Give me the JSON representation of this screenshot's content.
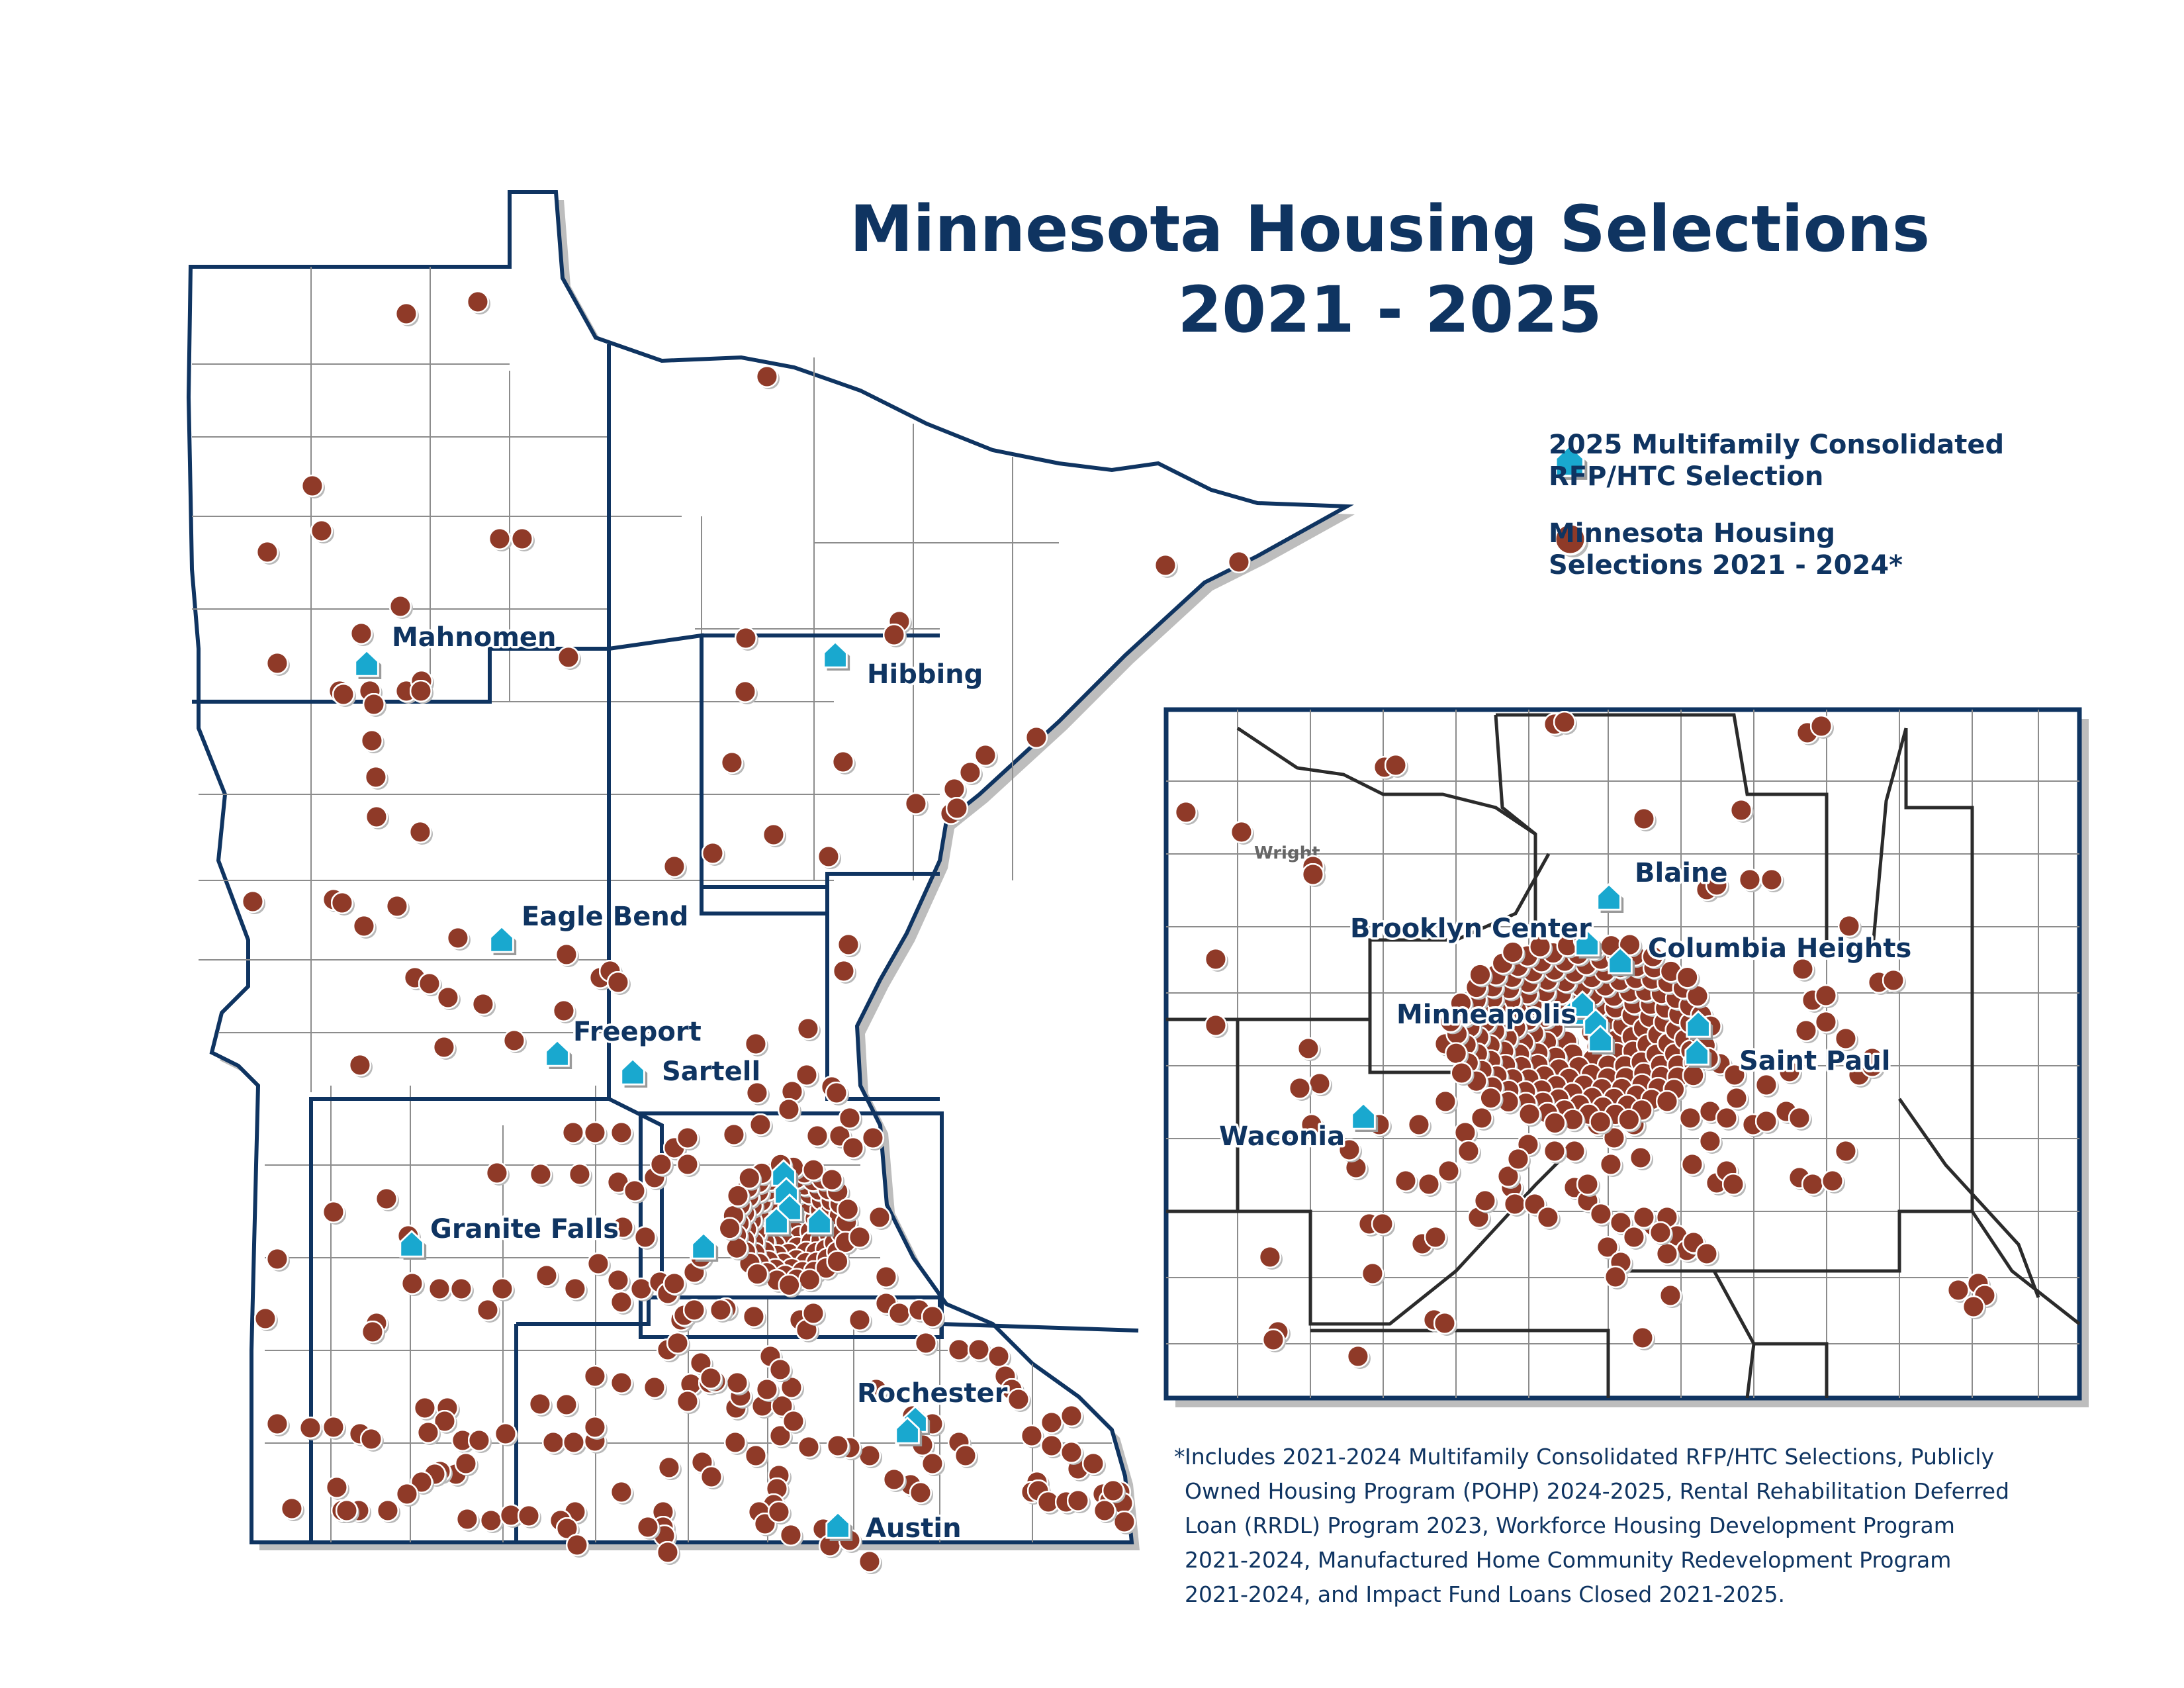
{
  "title_line1": "Minnesota Housing Selections",
  "title_line2": "2021 - 2025",
  "legend": {
    "item1_line1": "2025 Multifamily Consolidated",
    "item1_line2": "RFP/HTC Selection",
    "item2_line1": "Minnesota Housing",
    "item2_line2": "Selections 2021 - 2024*"
  },
  "colors": {
    "navy": "#0f3461",
    "dot": "#8f3a28",
    "house": "#19a8cf",
    "shadow": "#9a9a9a"
  },
  "cities_main": [
    {
      "name": "Mahnomen"
    },
    {
      "name": "Hibbing"
    },
    {
      "name": "Eagle Bend"
    },
    {
      "name": "Freeport"
    },
    {
      "name": "Sartell"
    },
    {
      "name": "Granite Falls"
    },
    {
      "name": "Rochester"
    },
    {
      "name": "Austin"
    }
  ],
  "cities_inset": [
    {
      "name": "Blaine"
    },
    {
      "name": "Brooklyn Center"
    },
    {
      "name": "Columbia Heights"
    },
    {
      "name": "Minneapolis"
    },
    {
      "name": "Saint Paul"
    },
    {
      "name": "Waconia"
    }
  ],
  "inset_county_label": "Wright",
  "footnote": {
    "star": "*",
    "line1": "Includes 2021-2024 Multifamily Consolidated RFP/HTC Selections, Publicly",
    "line2": "Owned Housing Program (POHP) 2024-2025, Rental Rehabilitation Deferred",
    "line3": "Loan (RRDL) Program 2023, Workforce Housing Development Program",
    "line4": "2021-2024, Manufactured Home Community Redevelopment Program",
    "line5": "2021-2024, and Impact Fund Loans Closed 2021-2025."
  }
}
